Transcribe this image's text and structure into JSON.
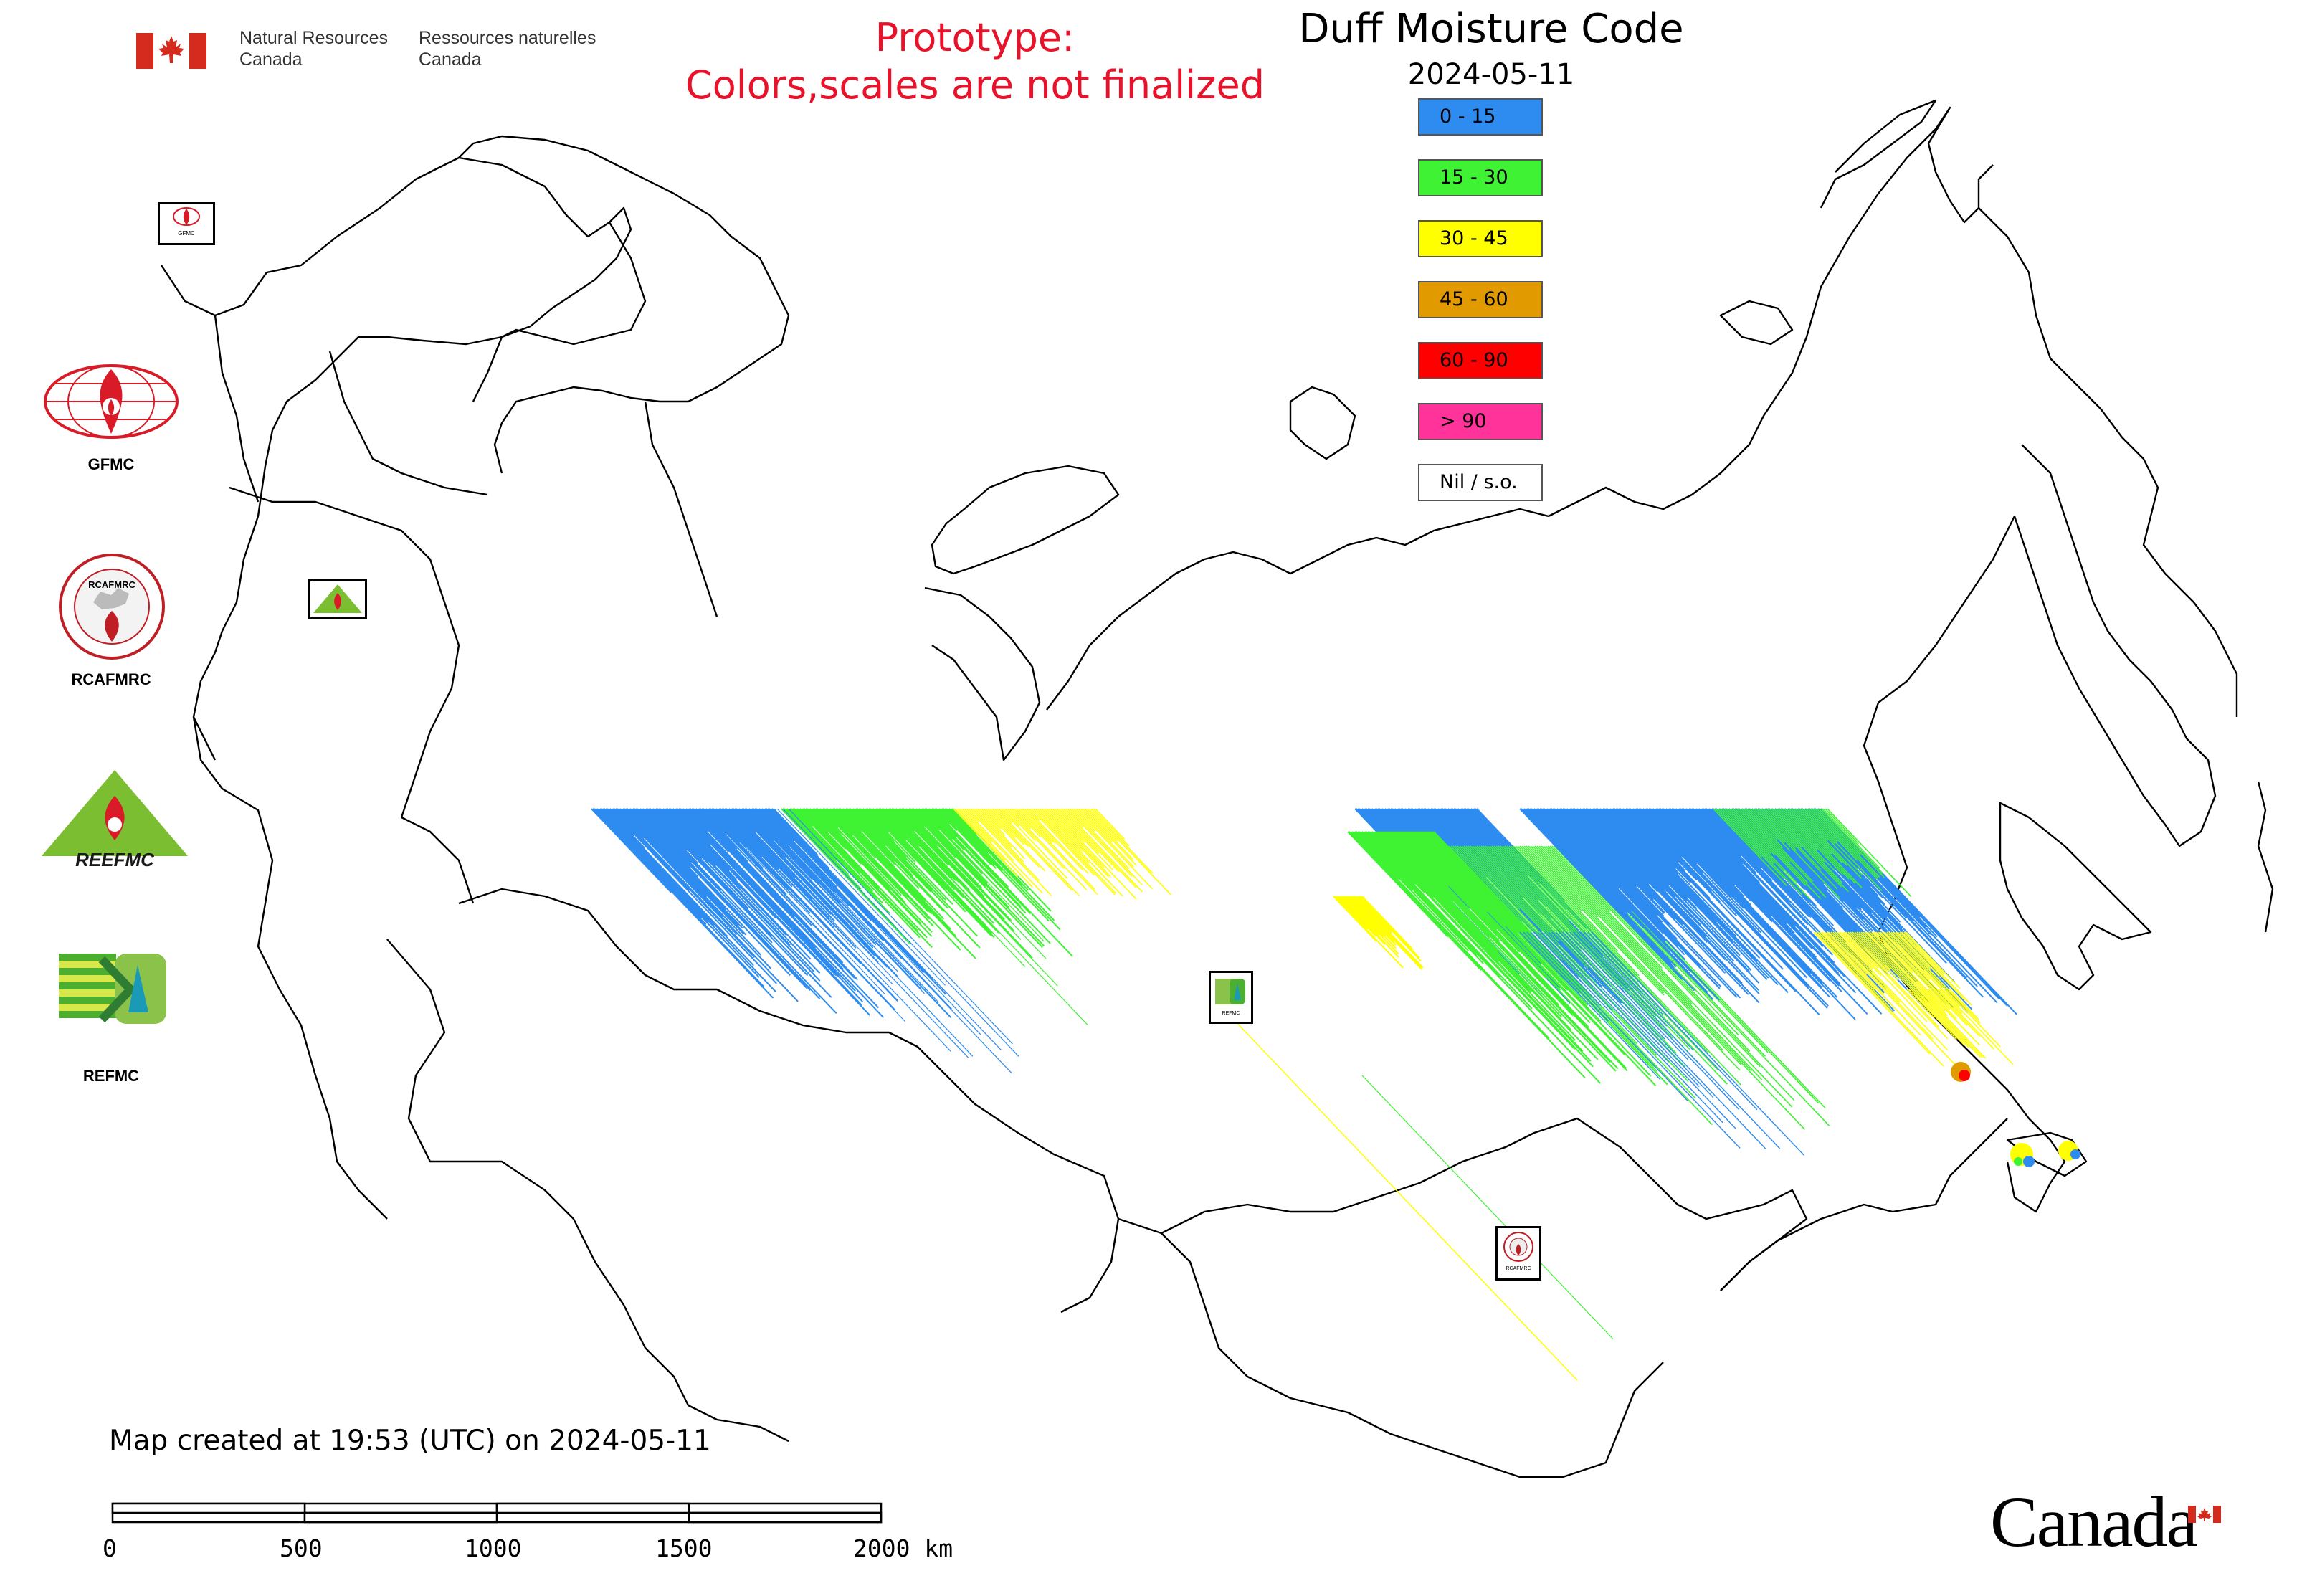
{
  "header": {
    "org_en_line1": "Natural Resources",
    "org_en_line2": "Canada",
    "org_fr_line1": "Ressources naturelles",
    "org_fr_line2": "Canada",
    "prototype_line1": "Prototype:",
    "prototype_line2": "Colors,scales are not finalized",
    "title": "Duff Moisture Code",
    "date": "2024-05-11"
  },
  "legend": [
    {
      "label": "0 - 15",
      "color": "#2e8cf0"
    },
    {
      "label": "15 - 30",
      "color": "#3ff233"
    },
    {
      "label": "30 - 45",
      "color": "#ffff00"
    },
    {
      "label": "45 - 60",
      "color": "#e19a00"
    },
    {
      "label": "60 - 90",
      "color": "#ff0000"
    },
    {
      "label": "> 90",
      "color": "#ff3399"
    },
    {
      "label": "Nil / s.o.",
      "color": "#ffffff"
    }
  ],
  "logos": {
    "gfmc": "GFMC",
    "rcafmrc": "RCAFMRC",
    "reefmc_label": "REFMC",
    "reefmc_wordmark": "REEFMC",
    "map_marker_gfmc": "GFMC",
    "map_marker_rcafmrc": "RCAFMRC",
    "map_marker_refmc": "REFMC"
  },
  "footer": {
    "created": "Map created at 19:53 (UTC) on 2024-05-11",
    "scale_labels": [
      "0",
      "500",
      "1000",
      "1500",
      "2000 km"
    ],
    "wordmark": "Canada"
  }
}
